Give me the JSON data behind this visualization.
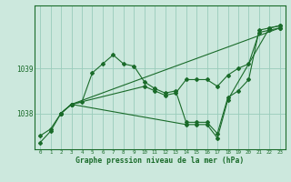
{
  "bg_color": "#cce8dd",
  "grid_color": "#99ccbb",
  "line_color": "#1a6b2a",
  "title": "Graphe pression niveau de la mer (hPa)",
  "ylim": [
    1037.2,
    1040.4
  ],
  "yticks": [
    1038,
    1039
  ],
  "xlim": [
    -0.5,
    23.5
  ],
  "series_parsed": [
    {
      "x": [
        0,
        1,
        2,
        3,
        4,
        5,
        6,
        7,
        8,
        9,
        10,
        11,
        12,
        13,
        14,
        15,
        16,
        17,
        18,
        19,
        20,
        21,
        22,
        23
      ],
      "y": [
        1037.5,
        1037.65,
        1038.0,
        1038.2,
        1038.25,
        1038.9,
        1039.1,
        1039.3,
        1039.1,
        1039.05,
        1038.7,
        1038.55,
        1038.45,
        1038.5,
        1037.8,
        1037.8,
        1037.8,
        1037.55,
        1038.35,
        1038.5,
        1038.75,
        1039.85,
        1039.9,
        1039.95
      ]
    },
    {
      "x": [
        2,
        3,
        23
      ],
      "y": [
        1038.0,
        1038.2,
        1039.9
      ]
    },
    {
      "x": [
        2,
        3,
        10,
        11,
        12,
        13,
        14,
        15,
        16,
        17,
        18,
        19,
        20,
        21,
        22,
        23
      ],
      "y": [
        1038.0,
        1038.2,
        1038.6,
        1038.5,
        1038.4,
        1038.45,
        1038.75,
        1038.75,
        1038.75,
        1038.6,
        1038.85,
        1039.0,
        1039.1,
        1039.8,
        1039.85,
        1039.9
      ]
    },
    {
      "x": [
        0,
        1,
        2,
        3,
        14,
        15,
        16,
        17,
        18,
        22,
        23
      ],
      "y": [
        1037.35,
        1037.6,
        1038.0,
        1038.2,
        1037.75,
        1037.75,
        1037.75,
        1037.45,
        1038.3,
        1039.9,
        1039.95
      ]
    }
  ]
}
